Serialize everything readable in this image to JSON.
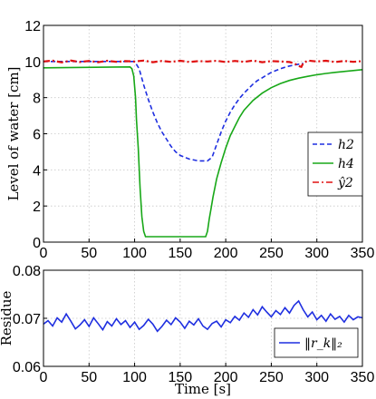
{
  "chart_data": [
    {
      "type": "line",
      "title": "",
      "xlabel": "",
      "ylabel": "Level of water [cm]",
      "xlim": [
        0,
        350
      ],
      "ylim": [
        0,
        12
      ],
      "xticks": [
        "0",
        "50",
        "100",
        "150",
        "200",
        "250",
        "300",
        "350"
      ],
      "yticks": [
        "0",
        "2",
        "4",
        "6",
        "8",
        "10",
        "12"
      ],
      "grid": true,
      "legend_position": "right",
      "series": [
        {
          "name": "h2",
          "color": "#1f2fe0",
          "style": "dashed",
          "x": [
            0,
            90,
            100,
            105,
            110,
            115,
            120,
            125,
            130,
            135,
            140,
            145,
            150,
            155,
            160,
            165,
            170,
            175,
            180,
            185,
            190,
            195,
            200,
            205,
            210,
            215,
            220,
            225,
            230,
            235,
            240,
            245,
            250,
            255,
            260,
            265,
            270,
            275,
            280,
            285
          ],
          "y": [
            10.0,
            10.0,
            10.0,
            9.6,
            8.7,
            7.9,
            7.2,
            6.6,
            6.1,
            5.7,
            5.3,
            5.0,
            4.8,
            4.7,
            4.6,
            4.55,
            4.5,
            4.5,
            4.5,
            4.7,
            5.4,
            6.1,
            6.7,
            7.2,
            7.6,
            7.95,
            8.25,
            8.5,
            8.75,
            8.95,
            9.1,
            9.25,
            9.4,
            9.5,
            9.6,
            9.68,
            9.75,
            9.8,
            9.85,
            9.9
          ]
        },
        {
          "name": "h4",
          "color": "#18a818",
          "style": "solid",
          "x": [
            0,
            95,
            97,
            99,
            101,
            102,
            104,
            106,
            108,
            110,
            112,
            120,
            140,
            160,
            175,
            178,
            180,
            182,
            184,
            186,
            188,
            190,
            195,
            200,
            205,
            210,
            215,
            220,
            230,
            240,
            250,
            260,
            270,
            280,
            290,
            300,
            310,
            320,
            330,
            340,
            350
          ],
          "y": [
            9.65,
            9.7,
            9.6,
            9.2,
            8.0,
            6.8,
            5.2,
            3.0,
            1.4,
            0.6,
            0.3,
            0.3,
            0.3,
            0.3,
            0.3,
            0.3,
            0.6,
            1.3,
            1.9,
            2.5,
            3.0,
            3.5,
            4.4,
            5.2,
            5.9,
            6.4,
            6.9,
            7.3,
            7.85,
            8.25,
            8.55,
            8.78,
            8.95,
            9.08,
            9.18,
            9.27,
            9.34,
            9.4,
            9.45,
            9.5,
            9.55
          ]
        },
        {
          "name": "ŷ2",
          "color": "#e01010",
          "style": "dashdot",
          "x": [
            0,
            10,
            20,
            30,
            40,
            50,
            60,
            70,
            80,
            90,
            100,
            110,
            120,
            130,
            140,
            150,
            160,
            170,
            180,
            190,
            200,
            210,
            220,
            230,
            240,
            250,
            260,
            270,
            275,
            280,
            283,
            285,
            290,
            300,
            310,
            320,
            330,
            340,
            350
          ],
          "y": [
            10.0,
            10.05,
            9.95,
            10.05,
            9.97,
            10.03,
            9.96,
            10.04,
            9.98,
            10.02,
            10.0,
            10.05,
            9.96,
            10.03,
            9.98,
            10.04,
            9.97,
            10.02,
            10.0,
            10.04,
            9.97,
            10.03,
            9.98,
            10.05,
            9.96,
            10.02,
            10.0,
            9.97,
            9.9,
            9.75,
            9.7,
            9.9,
            10.05,
            10.0,
            10.04,
            9.97,
            10.03,
            9.98,
            10.02
          ]
        }
      ]
    },
    {
      "type": "line",
      "title": "",
      "xlabel": "Time [s]",
      "ylabel": "Residue",
      "xlim": [
        0,
        350
      ],
      "ylim": [
        0.06,
        0.08
      ],
      "xticks": [
        "0",
        "50",
        "100",
        "150",
        "200",
        "250",
        "300",
        "350"
      ],
      "yticks": [
        "0.06",
        "0.07",
        "0.08"
      ],
      "grid": true,
      "legend_position": "bottom-right",
      "series": [
        {
          "name": "‖r_k‖₂",
          "color": "#1f2fe0",
          "style": "solid",
          "x": [
            0,
            5,
            10,
            15,
            20,
            25,
            30,
            35,
            40,
            45,
            50,
            55,
            60,
            65,
            70,
            75,
            80,
            85,
            90,
            95,
            100,
            105,
            110,
            115,
            120,
            125,
            130,
            135,
            140,
            145,
            150,
            155,
            160,
            165,
            170,
            175,
            180,
            185,
            190,
            195,
            200,
            205,
            210,
            215,
            220,
            225,
            230,
            235,
            240,
            245,
            250,
            255,
            260,
            265,
            270,
            275,
            280,
            285,
            290,
            295,
            300,
            305,
            310,
            315,
            320,
            325,
            330,
            335,
            340,
            345,
            350
          ],
          "y": [
            0.0688,
            0.0695,
            0.0684,
            0.0701,
            0.0692,
            0.0709,
            0.0694,
            0.0678,
            0.0686,
            0.0697,
            0.0683,
            0.0701,
            0.0689,
            0.0676,
            0.0693,
            0.0684,
            0.0699,
            0.0687,
            0.0695,
            0.0681,
            0.0692,
            0.0677,
            0.0685,
            0.0698,
            0.0688,
            0.0673,
            0.0683,
            0.0696,
            0.0687,
            0.0701,
            0.0692,
            0.0679,
            0.0694,
            0.0686,
            0.0699,
            0.0684,
            0.0677,
            0.0689,
            0.0694,
            0.0682,
            0.0697,
            0.0691,
            0.0704,
            0.0696,
            0.0711,
            0.0702,
            0.0718,
            0.0707,
            0.0724,
            0.0713,
            0.0703,
            0.0716,
            0.0708,
            0.0722,
            0.0711,
            0.0727,
            0.0736,
            0.0718,
            0.0703,
            0.0713,
            0.0697,
            0.0706,
            0.0694,
            0.0709,
            0.0698,
            0.0704,
            0.0692,
            0.0706,
            0.0697,
            0.0703,
            0.0701
          ]
        }
      ]
    }
  ]
}
